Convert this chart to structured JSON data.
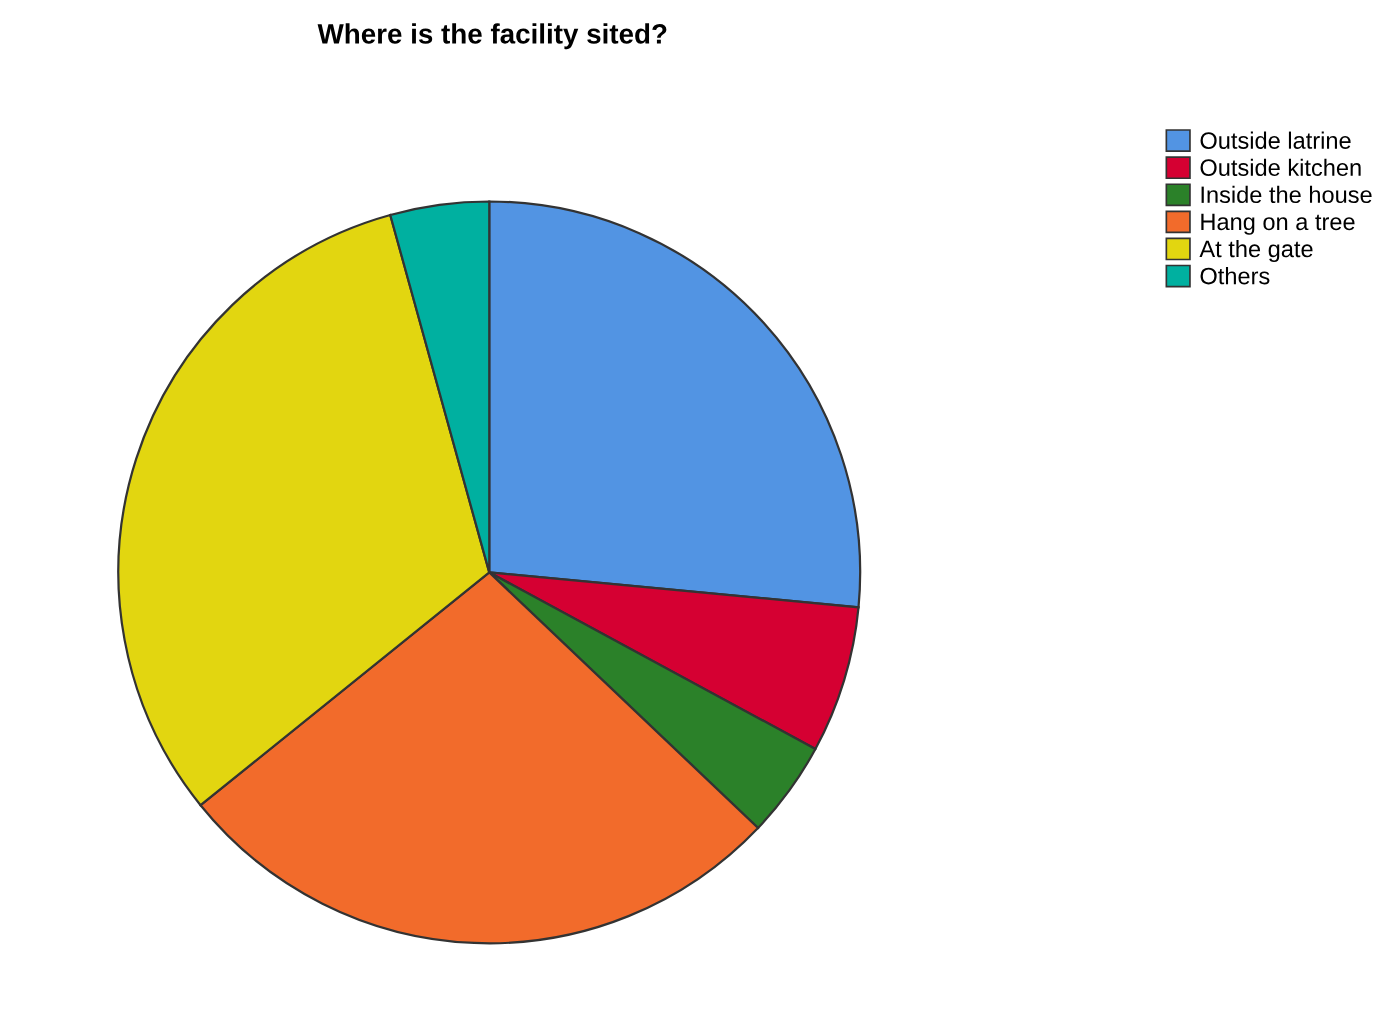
{
  "chart_data": {
    "type": "pie",
    "title": "Where is the facility sited?",
    "categories": [
      "Outside latrine",
      "Outside kitchen",
      "Inside the house",
      "Hang on a tree",
      "At the gate",
      "Others"
    ],
    "values": [
      26.5,
      6.4,
      4.2,
      27.1,
      31.5,
      4.3
    ],
    "colors": [
      "#5294e3",
      "#d50032",
      "#2b8129",
      "#f26b2b",
      "#e2d610",
      "#00b0a0"
    ],
    "legend": "top right"
  }
}
